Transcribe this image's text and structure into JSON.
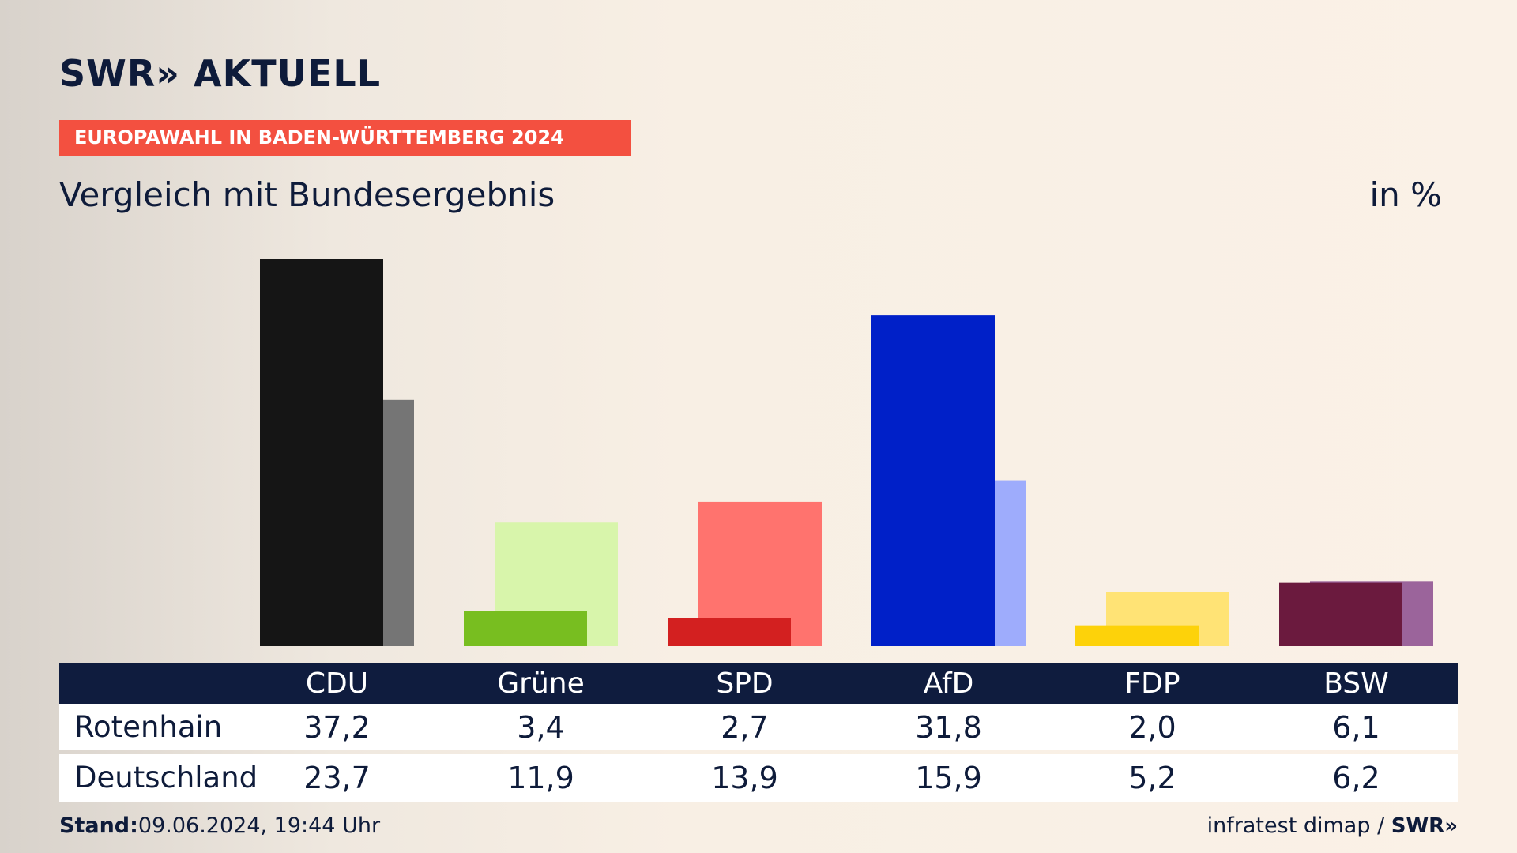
{
  "header": {
    "logo_text": "SWR» AKTUELL",
    "kicker": "EUROPAWAHL IN BADEN-WÜRTTEMBERG 2024",
    "title": "Vergleich mit Bundesergebnis",
    "unit": "in %"
  },
  "table": {
    "row1_label": "Rotenhain",
    "row2_label": "Deutschland"
  },
  "footer": {
    "stand_label": "Stand:",
    "stand_value": "09.06.2024, 19:44 Uhr",
    "source": "infratest dimap / ",
    "source_brand": "SWR»"
  },
  "chart_data": {
    "type": "bar",
    "categories": [
      "CDU",
      "Grüne",
      "SPD",
      "AfD",
      "FDP",
      "BSW"
    ],
    "series": [
      {
        "name": "Rotenhain",
        "values": [
          37.2,
          3.4,
          2.7,
          31.8,
          2.0,
          6.1
        ]
      },
      {
        "name": "Deutschland",
        "values": [
          23.7,
          11.9,
          13.9,
          15.9,
          5.2,
          6.2
        ]
      }
    ],
    "value_labels": {
      "Rotenhain": [
        "37,2",
        "3,4",
        "2,7",
        "31,8",
        "2,0",
        "6,1"
      ],
      "Deutschland": [
        "23,7",
        "11,9",
        "13,9",
        "15,9",
        "5,2",
        "6,2"
      ]
    },
    "colors": {
      "primary": [
        "#151515",
        "#78be20",
        "#d32020",
        "#0020c8",
        "#fdd20a",
        "#6b1a3e"
      ],
      "secondary": [
        "#757575",
        "#d8f5ab",
        "#ff736e",
        "#9eacfc",
        "#ffe375",
        "#9b649b"
      ]
    },
    "ylim": [
      0,
      38
    ],
    "grid": false
  }
}
